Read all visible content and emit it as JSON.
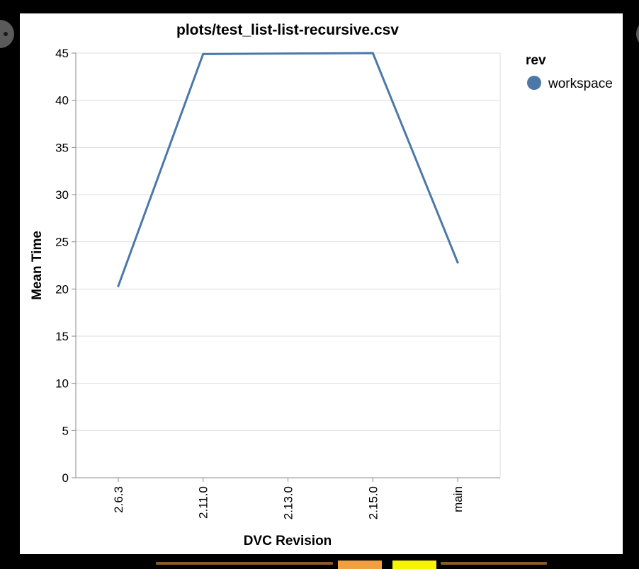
{
  "chart_data": {
    "type": "line",
    "title": "plots/test_list-list-recursive.csv",
    "xlabel": "DVC Revision",
    "ylabel": "Mean Time",
    "categories": [
      "2.6.3",
      "2.11.0",
      "2.13.0",
      "2.15.0",
      "main"
    ],
    "series": [
      {
        "name": "workspace",
        "x": [
          "2.6.3",
          "2.11.0",
          "2.15.0",
          "main"
        ],
        "values": [
          20.3,
          44.9,
          45.0,
          22.8
        ]
      }
    ],
    "ylim": [
      0,
      45
    ],
    "yticks": [
      0,
      5,
      10,
      15,
      20,
      25,
      30,
      35,
      40,
      45
    ],
    "grid": true,
    "legend": {
      "title": "rev",
      "placement": "top-right"
    },
    "colors": {
      "line": "#4c78a8",
      "grid": "#dddddd",
      "axis": "#888888",
      "text": "#000000"
    }
  }
}
